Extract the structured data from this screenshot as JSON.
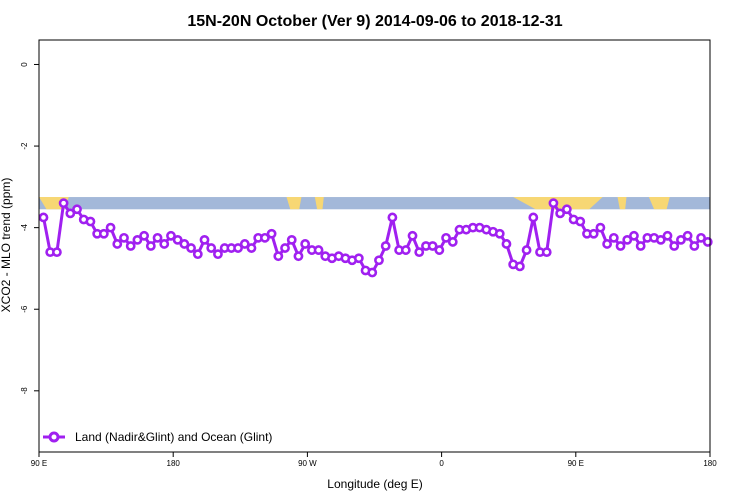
{
  "chart_data": {
    "type": "line",
    "title": "15N-20N October (Ver 9)   2014-09-06 to 2018-12-31",
    "xlabel": "Longitude (deg E)",
    "ylabel": "XCO2 - MLO trend (ppm)",
    "xlim": [
      90,
      540
    ],
    "ylim": [
      -9.5,
      0.6
    ],
    "x_ticks": [
      {
        "value": 90,
        "label": "90 E"
      },
      {
        "value": 180,
        "label": "180"
      },
      {
        "value": 270,
        "label": "90 W"
      },
      {
        "value": 360,
        "label": "0"
      },
      {
        "value": 450,
        "label": "90 E"
      },
      {
        "value": 540,
        "label": "180"
      }
    ],
    "y_ticks": [
      {
        "value": 0,
        "label": "0"
      },
      {
        "value": -2,
        "label": "-2"
      },
      {
        "value": -4,
        "label": "-4"
      },
      {
        "value": -6,
        "label": "-6"
      },
      {
        "value": -8,
        "label": "-8"
      }
    ],
    "grid": false,
    "legend_position": "bottom-left",
    "land_ocean_strip": {
      "y_range": [
        -3.55,
        -3.25
      ],
      "ocean_color": "#a3b8d9",
      "land_color": "#f7d774",
      "land_segments": [
        [
          90,
          110
        ],
        [
          256,
          266
        ],
        [
          275,
          281
        ],
        [
          408,
          468
        ],
        [
          478,
          484
        ],
        [
          499,
          513
        ]
      ]
    },
    "series": [
      {
        "name": "Land (Nadir&Glint) and Ocean (Glint)",
        "color": "#a020f0",
        "x": [
          93,
          97.5,
          102,
          106.5,
          111,
          115.5,
          120,
          124.5,
          129,
          133.5,
          138,
          142.5,
          147,
          151.5,
          156,
          160.5,
          165,
          169.5,
          174,
          178.5,
          183,
          187.5,
          192,
          196.5,
          201,
          205.5,
          210,
          214.5,
          219,
          223.5,
          228,
          232.5,
          237,
          241.5,
          246,
          250.5,
          255,
          259.5,
          264,
          268.5,
          273,
          277.5,
          282,
          286.5,
          291,
          295.5,
          300,
          304.5,
          309,
          313.5,
          318,
          322.5,
          327,
          331.5,
          336,
          340.5,
          345,
          349.5,
          354,
          358.5,
          363,
          367.5,
          372,
          376.5,
          381,
          385.5,
          390,
          394.5,
          399,
          403.5,
          408,
          412.5,
          417,
          421.5,
          426,
          430.5,
          435,
          439.5,
          444,
          448.5,
          453,
          457.5,
          462,
          466.5,
          471,
          475.5,
          480,
          484.5,
          489,
          493.5,
          498,
          502.5,
          507,
          511.5,
          516,
          520.5,
          525,
          529.5,
          534,
          538.5
        ],
        "values": [
          -3.75,
          -4.6,
          -4.6,
          -3.4,
          -3.65,
          -3.55,
          -3.8,
          -3.85,
          -4.15,
          -4.15,
          -4.0,
          -4.4,
          -4.25,
          -4.45,
          -4.3,
          -4.2,
          -4.45,
          -4.25,
          -4.4,
          -4.2,
          -4.3,
          -4.4,
          -4.5,
          -4.65,
          -4.3,
          -4.5,
          -4.65,
          -4.5,
          -4.5,
          -4.5,
          -4.4,
          -4.5,
          -4.25,
          -4.25,
          -4.15,
          -4.7,
          -4.5,
          -4.3,
          -4.7,
          -4.4,
          -4.55,
          -4.55,
          -4.7,
          -4.75,
          -4.7,
          -4.75,
          -4.8,
          -4.75,
          -5.05,
          -5.1,
          -4.8,
          -4.45,
          -3.75,
          -4.55,
          -4.55,
          -4.2,
          -4.6,
          -4.45,
          -4.45,
          -4.55,
          -4.25,
          -4.35,
          -4.05,
          -4.05,
          -4.0,
          -4.0,
          -4.05,
          -4.1,
          -4.15,
          -4.4,
          -4.9,
          -4.95,
          -4.55,
          -3.75,
          -4.6,
          -4.6,
          -3.4,
          -3.65,
          -3.55,
          -3.8,
          -3.85,
          -4.15,
          -4.15,
          -4.0,
          -4.4,
          -4.25,
          -4.45,
          -4.3,
          -4.2,
          -4.45,
          -4.25,
          -4.25,
          -4.3,
          -4.2,
          -4.45,
          -4.3,
          -4.2,
          -4.45,
          -4.25,
          -4.35
        ]
      }
    ]
  }
}
